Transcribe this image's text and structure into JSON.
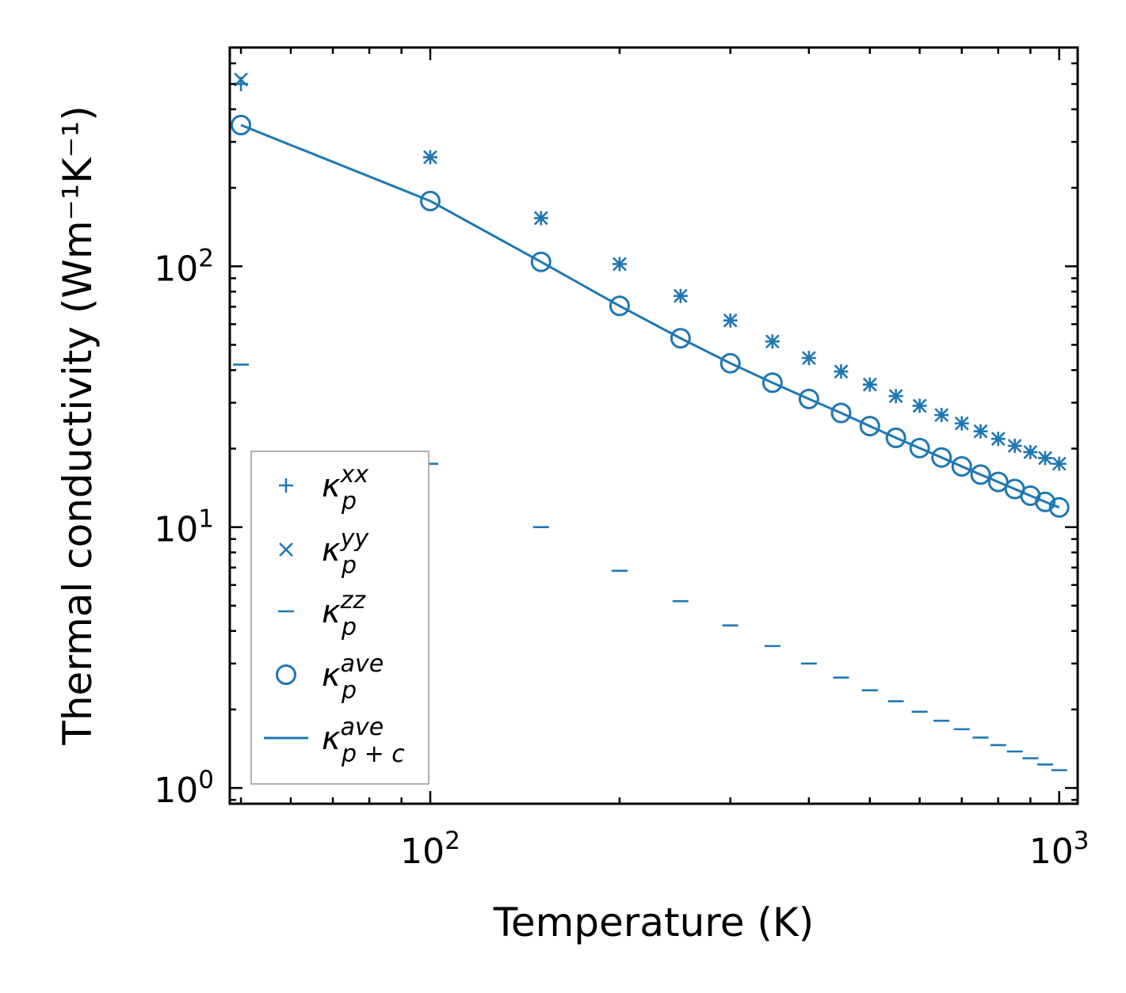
{
  "colors": {
    "series": "#1f77b4",
    "axis": "#000000",
    "legend_border": "#999999"
  },
  "chart_data": {
    "type": "scatter",
    "title": "",
    "xlabel": "Temperature (K)",
    "ylabel": "Thermal conductivity (Wm⁻¹K⁻¹)",
    "xscale": "log",
    "yscale": "log",
    "xlim": [
      48,
      1070
    ],
    "ylim": [
      0.87,
      690
    ],
    "x_ticks": [
      {
        "value": 100,
        "base": "10",
        "exp": "2"
      },
      {
        "value": 1000,
        "base": "10",
        "exp": "3"
      }
    ],
    "y_ticks": [
      {
        "value": 1,
        "base": "10",
        "exp": "0"
      },
      {
        "value": 10,
        "base": "10",
        "exp": "1"
      },
      {
        "value": 100,
        "base": "10",
        "exp": "2"
      }
    ],
    "x": [
      50,
      100,
      150,
      200,
      250,
      300,
      350,
      400,
      450,
      500,
      550,
      600,
      650,
      700,
      750,
      800,
      850,
      900,
      950,
      1000
    ],
    "series": [
      {
        "name": "κ_p^xx",
        "marker": "plus",
        "values": [
          500,
          262,
          153,
          102,
          77,
          62,
          51.5,
          44.5,
          39.5,
          35.2,
          31.8,
          29.2,
          26.9,
          25.0,
          23.3,
          21.8,
          20.5,
          19.4,
          18.4,
          17.5
        ]
      },
      {
        "name": "κ_p^yy",
        "marker": "x",
        "values": [
          520,
          262,
          153,
          102,
          77,
          62,
          51.5,
          44.5,
          39.5,
          35.2,
          31.8,
          29.2,
          26.9,
          25.0,
          23.3,
          21.8,
          20.5,
          19.4,
          18.4,
          17.5
        ]
      },
      {
        "name": "κ_p^zz",
        "marker": "hline",
        "values": [
          42,
          17.5,
          10.0,
          6.8,
          5.2,
          4.2,
          3.5,
          3.0,
          2.65,
          2.37,
          2.15,
          1.96,
          1.81,
          1.68,
          1.56,
          1.46,
          1.38,
          1.3,
          1.23,
          1.17
        ]
      },
      {
        "name": "κ_p^ave",
        "marker": "circle",
        "values": [
          348,
          178,
          104,
          70.5,
          53,
          42.5,
          35.8,
          31.0,
          27.4,
          24.4,
          22.0,
          20.1,
          18.5,
          17.1,
          15.9,
          14.9,
          14.0,
          13.2,
          12.5,
          11.9
        ]
      },
      {
        "name": "κ_p+c^ave",
        "marker": "line",
        "values": [
          348,
          178,
          104,
          70.5,
          53,
          42.5,
          35.8,
          31.0,
          27.4,
          24.4,
          22.0,
          20.1,
          18.5,
          17.1,
          15.9,
          14.9,
          14.0,
          13.2,
          12.5,
          11.9
        ]
      }
    ],
    "legend": {
      "placement": "lower-left",
      "entries": [
        {
          "symbol": "κ",
          "sub": "p",
          "sup": "xx",
          "marker": "plus"
        },
        {
          "symbol": "κ",
          "sub": "p",
          "sup": "yy",
          "marker": "x"
        },
        {
          "symbol": "κ",
          "sub": "p",
          "sup": "zz",
          "marker": "hline"
        },
        {
          "symbol": "κ",
          "sub": "p",
          "sup": "ave",
          "marker": "circle"
        },
        {
          "symbol": "κ",
          "sub": "p + c",
          "sup": "ave",
          "marker": "line"
        }
      ]
    }
  }
}
